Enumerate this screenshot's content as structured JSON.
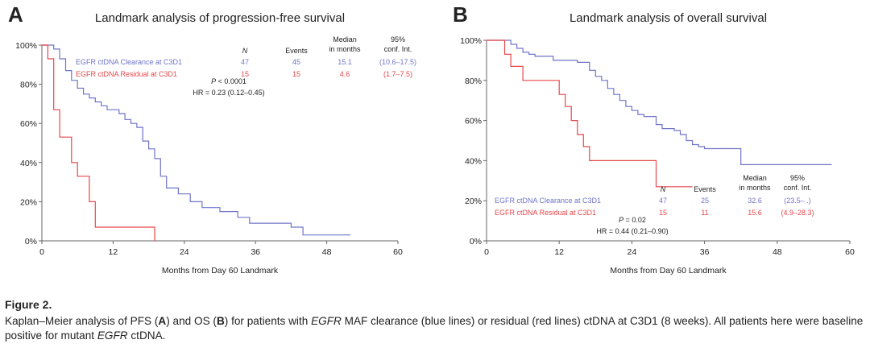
{
  "colors": {
    "clearance": "#6f74c8",
    "residual": "#e8464b",
    "axis": "#666666",
    "text": "#222222"
  },
  "chart_data": [
    {
      "panel_letter": "A",
      "type": "line",
      "title": "Landmark analysis of progression-free survival",
      "xlabel": "Months from Day 60 Landmark",
      "ylabel": "",
      "xlim": [
        0,
        60
      ],
      "ylim": [
        0,
        100
      ],
      "xticks": [
        0,
        12,
        24,
        36,
        48,
        60
      ],
      "yticks": [
        0,
        20,
        40,
        60,
        80,
        100
      ],
      "ytick_labels": [
        "0%",
        "20%",
        "40%",
        "60%",
        "80%",
        "100%"
      ],
      "grid": false,
      "step": true,
      "series": [
        {
          "name": "EGFR ctDNA Clearance at C3D1",
          "color": "#6f74c8",
          "x": [
            0,
            2,
            3,
            4,
            5,
            6,
            7,
            8,
            9,
            10,
            11,
            13,
            14,
            15,
            16,
            17,
            18,
            19,
            20,
            21,
            23,
            25,
            27,
            30,
            33,
            35,
            42,
            44,
            52
          ],
          "y": [
            100,
            98,
            93,
            87,
            82,
            78,
            75,
            73,
            71,
            69,
            67,
            65,
            62,
            60,
            58,
            51,
            47,
            42,
            33,
            27,
            24,
            20,
            17,
            15,
            12,
            9,
            7,
            3,
            3
          ]
        },
        {
          "name": "EGFR ctDNA Residual at C3D1",
          "color": "#e8464b",
          "x": [
            0,
            1,
            2,
            3,
            5,
            6,
            8,
            9,
            10,
            19
          ],
          "y": [
            100,
            93,
            67,
            53,
            40,
            33,
            20,
            7,
            7,
            0
          ]
        }
      ],
      "table": {
        "headers": [
          "N",
          "Events",
          "Median in months",
          "95% conf. Int."
        ],
        "rows": [
          {
            "label": "EGFR ctDNA Clearance at C3D1",
            "n": "47",
            "events": "45",
            "median": "15.1",
            "ci": "(10.6–17.5)"
          },
          {
            "label": "EGFR ctDNA Residual at C3D1",
            "n": "15",
            "events": "15",
            "median": "4.6",
            "ci": "(1.7–7.5)"
          }
        ]
      },
      "p_value": "0.0001",
      "hr_text": "HR = 0.23 (0.12–0.45)"
    },
    {
      "panel_letter": "B",
      "type": "line",
      "title": "Landmark analysis of overall survival",
      "xlabel": "Months from Day 60 Landmark",
      "ylabel": "",
      "xlim": [
        0,
        60
      ],
      "ylim": [
        0,
        100
      ],
      "xticks": [
        0,
        12,
        24,
        36,
        48,
        60
      ],
      "yticks": [
        0,
        20,
        40,
        60,
        80,
        100
      ],
      "ytick_labels": [
        "0%",
        "20%",
        "40%",
        "60%",
        "80%",
        "100%"
      ],
      "grid": false,
      "step": true,
      "series": [
        {
          "name": "EGFR ctDNA Clearance at C3D1",
          "color": "#6f74c8",
          "x": [
            0,
            4,
            5,
            6,
            7,
            8,
            11,
            15,
            17,
            18,
            19,
            20,
            21,
            22,
            23,
            24,
            25,
            26,
            28,
            29,
            31,
            32,
            33,
            34,
            35,
            36,
            37,
            42,
            57
          ],
          "y": [
            100,
            98,
            96,
            94,
            93,
            92,
            90,
            89,
            85,
            82,
            80,
            76,
            73,
            70,
            67,
            65,
            63,
            62,
            58,
            56,
            55,
            53,
            50,
            48,
            47,
            46,
            46,
            38,
            38
          ]
        },
        {
          "name": "EGFR ctDNA Residual at C3D1",
          "color": "#e8464b",
          "x": [
            0,
            3,
            4,
            6,
            12,
            13,
            14,
            15,
            16,
            17,
            28,
            34
          ],
          "y": [
            100,
            93,
            87,
            80,
            73,
            67,
            60,
            53,
            47,
            40,
            27,
            27
          ]
        }
      ],
      "table": {
        "headers": [
          "N",
          "Events",
          "Median in months",
          "95% conf. Int."
        ],
        "rows": [
          {
            "label": "EGFR ctDNA Clearance at C3D1",
            "n": "47",
            "events": "25",
            "median": "32.6",
            "ci": "(23.5– .)"
          },
          {
            "label": "EGFR ctDNA Residual at C3D1",
            "n": "15",
            "events": "11",
            "median": "15.6",
            "ci": "(4.9–28.3)"
          }
        ]
      },
      "p_value": "0.02",
      "hr_text": "HR = 0.44 (0.21–0.90)"
    }
  ],
  "caption": {
    "title": "Figure 2.",
    "body": [
      {
        "t": "Kaplan–Meier analysis of PFS (",
        "s": ""
      },
      {
        "t": "A",
        "s": "b"
      },
      {
        "t": ") and OS (",
        "s": ""
      },
      {
        "t": "B",
        "s": "b"
      },
      {
        "t": ") for patients with ",
        "s": ""
      },
      {
        "t": "EGFR",
        "s": "i"
      },
      {
        "t": " MAF clearance (blue lines) or residual (red lines) ctDNA at C3D1 (8 weeks). All patients here were baseline positive for mutant ",
        "s": ""
      },
      {
        "t": "EGFR",
        "s": "i"
      },
      {
        "t": " ctDNA.",
        "s": ""
      }
    ]
  }
}
